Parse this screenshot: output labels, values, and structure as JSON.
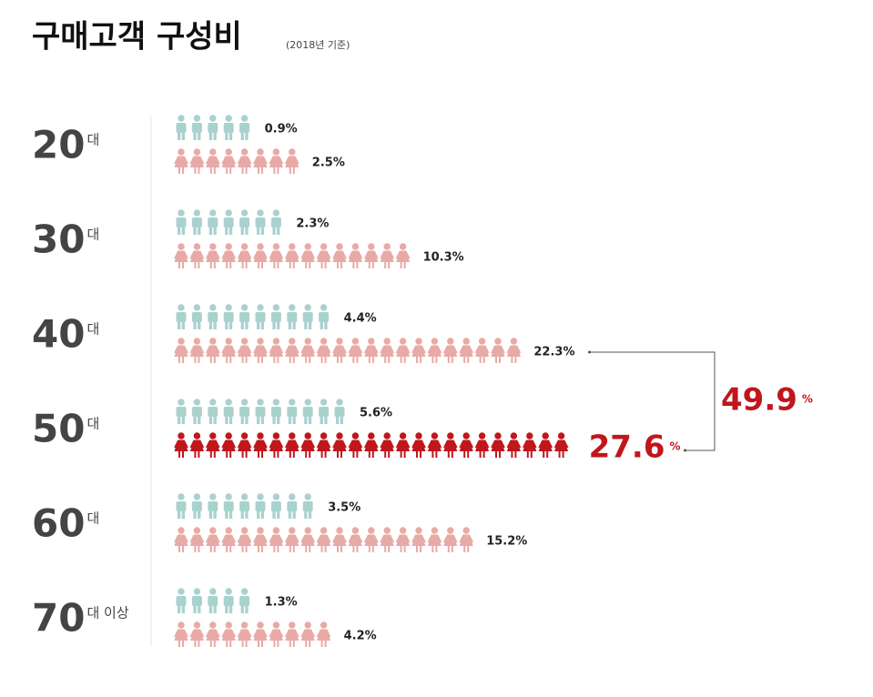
{
  "chart_data": {
    "type": "pictogram",
    "title": "구매고객 구성비",
    "subtitle": "(2018년 기준)",
    "categories": [
      "20",
      "30",
      "40",
      "50",
      "60",
      "70"
    ],
    "category_suffixes": [
      "대",
      "대",
      "대",
      "대",
      "대",
      "대 이상"
    ],
    "series": [
      {
        "color": "#a9d2cf",
        "values": [
          0.9,
          2.3,
          4.4,
          5.6,
          3.5,
          1.3
        ],
        "value_labels": [
          "0.9%",
          "2.3%",
          "4.4%",
          "5.6%",
          "3.5%",
          "1.3%"
        ]
      },
      {
        "color": "#e8aaa6",
        "values": [
          2.5,
          10.3,
          22.3,
          27.6,
          15.2,
          4.2
        ],
        "value_labels": [
          "2.5%",
          "10.3%",
          "22.3%",
          "27.6",
          "15.2%",
          "4.2%"
        ]
      }
    ],
    "highlight": {
      "series": 1,
      "index": 3,
      "color": "#c0161c",
      "unit": "%"
    },
    "sum_annotation": {
      "value": 49.9,
      "label": "49.9",
      "unit": "%",
      "rows": [
        2,
        3
      ],
      "series": 1
    }
  }
}
